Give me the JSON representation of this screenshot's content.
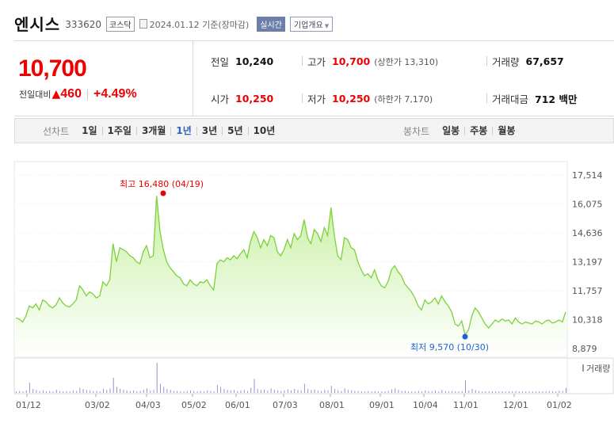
{
  "header": {
    "name": "엔시스",
    "code": "333620",
    "market": "코스닥",
    "date_text": "2024.01.12 기준(장마감)",
    "realtime": "실시간",
    "company_info": "기업개요"
  },
  "summary": {
    "price": "10,700",
    "change_label": "전일대비",
    "change_symbol": "▲",
    "change_amount": "460",
    "change_pct": "+4.49%",
    "prev_close_label": "전일",
    "prev_close": "10,240",
    "high_label": "고가",
    "high": "10,700",
    "upper_limit": "(상한가 13,310)",
    "volume_label": "거래량",
    "volume": "67,657",
    "open_label": "시가",
    "open": "10,250",
    "low_label": "저가",
    "low": "10,250",
    "lower_limit": "(하한가 7,170)",
    "value_label": "거래대금",
    "value": "712 백만"
  },
  "toolbar": {
    "line_label": "선차트",
    "line_items": [
      "1일",
      "1주일",
      "3개월",
      "1년",
      "3년",
      "5년",
      "10년"
    ],
    "active": "1년",
    "candle_label": "봉차트",
    "candle_items": [
      "일봉",
      "주봉",
      "월봉"
    ]
  },
  "chart_data": {
    "type": "area",
    "y_ticks": [
      "17,514",
      "16,075",
      "14,636",
      "13,197",
      "11,757",
      "10,318",
      "8,879"
    ],
    "ylim": [
      8879,
      17514
    ],
    "x_ticks": [
      "01/12",
      "03/02",
      "04/03",
      "05/02",
      "06/01",
      "07/03",
      "08/01",
      "09/01",
      "10/04",
      "11/01",
      "12/01",
      "01/02"
    ],
    "high_annotation": "최고 16,480 (04/19)",
    "low_annotation": "최저 9,570 (10/30)",
    "high_value": 16480,
    "low_value": 9570,
    "volume_label": "거래량",
    "colors": {
      "line": "#7dd13a",
      "fill_top": "#c8f0a4",
      "fill_bottom": "#ffffff",
      "high_marker": "#e60000",
      "low_marker": "#1a63d6",
      "volume_bar": "#9a8fd0"
    },
    "prices": [
      10400,
      10350,
      10200,
      10500,
      11000,
      10900,
      11100,
      10800,
      11300,
      11200,
      11000,
      10900,
      11050,
      11400,
      11150,
      11000,
      10950,
      11100,
      11300,
      12000,
      11800,
      11500,
      11700,
      11600,
      11400,
      11500,
      12200,
      12000,
      12300,
      14100,
      13200,
      13900,
      13800,
      13700,
      13500,
      13400,
      13200,
      13100,
      13700,
      14000,
      13400,
      13500,
      16480,
      14700,
      13800,
      13200,
      12900,
      12700,
      12500,
      12400,
      12100,
      12000,
      12300,
      12100,
      12000,
      12200,
      12150,
      12300,
      12000,
      11800,
      13100,
      13300,
      13200,
      13400,
      13300,
      13500,
      13350,
      13600,
      13800,
      13400,
      14200,
      14700,
      14400,
      13900,
      14300,
      14000,
      14500,
      14400,
      13700,
      13500,
      13800,
      14300,
      13900,
      14600,
      14300,
      14500,
      15300,
      14400,
      14100,
      14800,
      14600,
      14200,
      14900,
      14500,
      15900,
      14500,
      13500,
      13300,
      14400,
      14300,
      13900,
      13800,
      13200,
      12800,
      12500,
      12600,
      12400,
      12800,
      12300,
      12000,
      11900,
      12200,
      12800,
      13000,
      12700,
      12500,
      12100,
      11900,
      11700,
      11400,
      11000,
      10800,
      11300,
      11100,
      11200,
      11400,
      11100,
      11500,
      11200,
      11000,
      10700,
      10100,
      10000,
      10250,
      9570,
      9800,
      10500,
      10900,
      10700,
      10400,
      10100,
      9900,
      10100,
      10300,
      10200,
      10350,
      10250,
      10300,
      10100,
      10400,
      10200,
      10100,
      10200,
      10150,
      10100,
      10250,
      10200,
      10100,
      10250,
      10300,
      10150,
      10200,
      10300,
      10200,
      10700
    ],
    "volumes": [
      3,
      4,
      3,
      5,
      20,
      8,
      6,
      4,
      5,
      3,
      4,
      3,
      6,
      4,
      3,
      4,
      3,
      5,
      4,
      10,
      8,
      6,
      5,
      4,
      4,
      3,
      8,
      6,
      9,
      30,
      12,
      8,
      6,
      5,
      4,
      5,
      4,
      4,
      6,
      9,
      5,
      6,
      60,
      18,
      12,
      8,
      6,
      4,
      4,
      3,
      3,
      4,
      5,
      4,
      3,
      4,
      3,
      5,
      4,
      3,
      16,
      12,
      8,
      6,
      5,
      6,
      4,
      5,
      6,
      4,
      10,
      28,
      8,
      6,
      7,
      5,
      9,
      6,
      5,
      4,
      5,
      7,
      5,
      8,
      6,
      5,
      18,
      8,
      6,
      7,
      5,
      4,
      6,
      5,
      14,
      8,
      5,
      4,
      9,
      6,
      5,
      4,
      4,
      3,
      3,
      4,
      3,
      4,
      3,
      3,
      3,
      4,
      7,
      9,
      6,
      4,
      4,
      3,
      3,
      3,
      4,
      3,
      5,
      4,
      4,
      5,
      3,
      6,
      4,
      3,
      4,
      3,
      3,
      4,
      25,
      5,
      8,
      6,
      4,
      3,
      3,
      3,
      3,
      3,
      3,
      3,
      3,
      3,
      3,
      4,
      3,
      3,
      3,
      3,
      3,
      3,
      3,
      3,
      3,
      4,
      3,
      3,
      4,
      4,
      10
    ]
  }
}
